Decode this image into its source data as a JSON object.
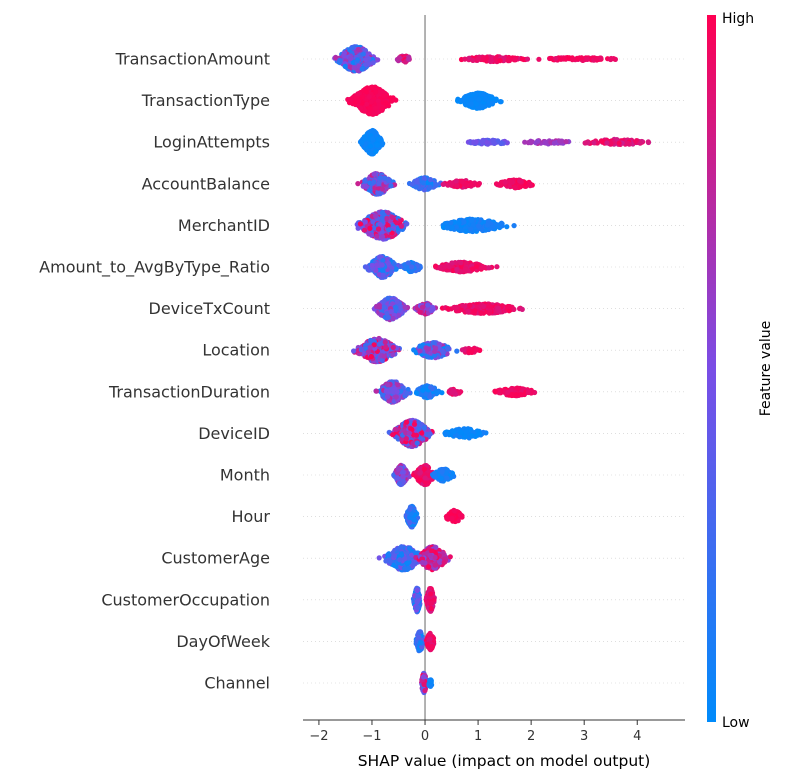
{
  "chart_data": {
    "type": "scatter",
    "subtype": "shap-beeswarm",
    "title": "",
    "xlabel": "SHAP value (impact on model output)",
    "xlim": [
      -2.3,
      4.9
    ],
    "xticks": [
      -2,
      -1,
      0,
      1,
      2,
      3,
      4
    ],
    "zero_line": true,
    "colorbar": {
      "label": "Feature value",
      "high_label": "High",
      "low_label": "Low",
      "low_color": "#008bfb",
      "high_color": "#ff0052"
    },
    "features": [
      {
        "name": "TransactionAmount",
        "clusters": [
          {
            "center": -1.3,
            "spread": 0.28,
            "width": 0.9,
            "count": 460,
            "colorMin": 0.05,
            "colorMax": 0.75
          },
          {
            "center": -0.4,
            "spread": 0.12,
            "width": 0.25,
            "count": 40,
            "colorMin": 0.7,
            "colorMax": 1.0
          },
          {
            "center": 1.3,
            "spread": 0.5,
            "width": 0.18,
            "count": 110,
            "colorMin": 0.85,
            "colorMax": 1.0
          },
          {
            "center": 2.9,
            "spread": 0.55,
            "width": 0.12,
            "count": 70,
            "colorMin": 0.9,
            "colorMax": 1.0
          }
        ]
      },
      {
        "name": "TransactionType",
        "clusters": [
          {
            "center": -1.0,
            "spread": 0.3,
            "width": 1.0,
            "count": 520,
            "colorMin": 0.95,
            "colorMax": 1.0
          },
          {
            "center": 1.0,
            "spread": 0.28,
            "width": 0.55,
            "count": 260,
            "colorMin": 0.0,
            "colorMax": 0.05
          }
        ]
      },
      {
        "name": "LoginAttempts",
        "clusters": [
          {
            "center": -1.0,
            "spread": 0.15,
            "width": 0.85,
            "count": 320,
            "colorMin": 0.0,
            "colorMax": 0.08
          },
          {
            "center": 1.2,
            "spread": 0.35,
            "width": 0.15,
            "count": 50,
            "colorMin": 0.3,
            "colorMax": 0.5
          },
          {
            "center": 2.3,
            "spread": 0.35,
            "width": 0.15,
            "count": 50,
            "colorMin": 0.55,
            "colorMax": 0.75
          },
          {
            "center": 3.6,
            "spread": 0.5,
            "width": 0.2,
            "count": 90,
            "colorMin": 0.8,
            "colorMax": 1.0
          }
        ]
      },
      {
        "name": "AccountBalance",
        "clusters": [
          {
            "center": -0.9,
            "spread": 0.22,
            "width": 0.75,
            "count": 300,
            "colorMin": 0.1,
            "colorMax": 0.85
          },
          {
            "center": 0.0,
            "spread": 0.2,
            "width": 0.45,
            "count": 150,
            "colorMin": 0.0,
            "colorMax": 0.35
          },
          {
            "center": 0.7,
            "spread": 0.3,
            "width": 0.25,
            "count": 80,
            "colorMin": 0.85,
            "colorMax": 1.0
          },
          {
            "center": 1.7,
            "spread": 0.3,
            "width": 0.28,
            "count": 110,
            "colorMin": 0.9,
            "colorMax": 1.0
          }
        ]
      },
      {
        "name": "MerchantID",
        "clusters": [
          {
            "center": -0.8,
            "spread": 0.35,
            "width": 1.0,
            "count": 500,
            "colorMin": 0.1,
            "colorMax": 1.0
          },
          {
            "center": 0.9,
            "spread": 0.5,
            "width": 0.45,
            "count": 260,
            "colorMin": 0.0,
            "colorMax": 0.15
          }
        ]
      },
      {
        "name": "Amount_to_AvgByType_Ratio",
        "clusters": [
          {
            "center": -0.8,
            "spread": 0.22,
            "width": 0.75,
            "count": 300,
            "colorMin": 0.05,
            "colorMax": 0.6
          },
          {
            "center": -0.25,
            "spread": 0.15,
            "width": 0.35,
            "count": 80,
            "colorMin": 0.0,
            "colorMax": 0.3
          },
          {
            "center": 0.7,
            "spread": 0.4,
            "width": 0.35,
            "count": 200,
            "colorMin": 0.85,
            "colorMax": 1.0
          }
        ]
      },
      {
        "name": "DeviceTxCount",
        "clusters": [
          {
            "center": -0.65,
            "spread": 0.22,
            "width": 0.8,
            "count": 300,
            "colorMin": 0.15,
            "colorMax": 0.7
          },
          {
            "center": 0.0,
            "spread": 0.15,
            "width": 0.4,
            "count": 90,
            "colorMin": 0.4,
            "colorMax": 0.9
          },
          {
            "center": 1.1,
            "spread": 0.55,
            "width": 0.35,
            "count": 260,
            "colorMin": 0.85,
            "colorMax": 1.0
          }
        ]
      },
      {
        "name": "Location",
        "clusters": [
          {
            "center": -0.9,
            "spread": 0.3,
            "width": 0.85,
            "count": 380,
            "colorMin": 0.2,
            "colorMax": 1.0
          },
          {
            "center": 0.15,
            "spread": 0.3,
            "width": 0.55,
            "count": 230,
            "colorMin": 0.0,
            "colorMax": 0.7
          },
          {
            "center": 0.85,
            "spread": 0.15,
            "width": 0.2,
            "count": 40,
            "colorMin": 0.85,
            "colorMax": 1.0
          }
        ]
      },
      {
        "name": "TransactionDuration",
        "clusters": [
          {
            "center": -0.6,
            "spread": 0.22,
            "width": 0.75,
            "count": 300,
            "colorMin": 0.1,
            "colorMax": 0.75
          },
          {
            "center": 0.05,
            "spread": 0.17,
            "width": 0.45,
            "count": 120,
            "colorMin": 0.0,
            "colorMax": 0.25
          },
          {
            "center": 0.55,
            "spread": 0.1,
            "width": 0.2,
            "count": 30,
            "colorMin": 0.85,
            "colorMax": 1.0
          },
          {
            "center": 1.7,
            "spread": 0.3,
            "width": 0.28,
            "count": 110,
            "colorMin": 0.9,
            "colorMax": 1.0
          }
        ]
      },
      {
        "name": "DeviceID",
        "clusters": [
          {
            "center": -0.25,
            "spread": 0.28,
            "width": 0.95,
            "count": 460,
            "colorMin": 0.2,
            "colorMax": 1.0
          },
          {
            "center": 0.75,
            "spread": 0.3,
            "width": 0.35,
            "count": 120,
            "colorMin": 0.0,
            "colorMax": 0.1
          }
        ]
      },
      {
        "name": "Month",
        "clusters": [
          {
            "center": -0.45,
            "spread": 0.1,
            "width": 0.7,
            "count": 200,
            "colorMin": 0.25,
            "colorMax": 0.8
          },
          {
            "center": 0.0,
            "spread": 0.15,
            "width": 0.7,
            "count": 180,
            "colorMin": 0.85,
            "colorMax": 1.0
          },
          {
            "center": 0.35,
            "spread": 0.15,
            "width": 0.45,
            "count": 100,
            "colorMin": 0.0,
            "colorMax": 0.15
          }
        ]
      },
      {
        "name": "Hour",
        "clusters": [
          {
            "center": -0.25,
            "spread": 0.08,
            "width": 0.75,
            "count": 220,
            "colorMin": 0.0,
            "colorMax": 0.35
          },
          {
            "center": 0.55,
            "spread": 0.12,
            "width": 0.45,
            "count": 110,
            "colorMin": 0.95,
            "colorMax": 1.0
          }
        ]
      },
      {
        "name": "CustomerAge",
        "clusters": [
          {
            "center": -0.4,
            "spread": 0.28,
            "width": 0.85,
            "count": 280,
            "colorMin": 0.0,
            "colorMax": 0.5
          },
          {
            "center": 0.15,
            "spread": 0.22,
            "width": 0.85,
            "count": 230,
            "colorMin": 0.5,
            "colorMax": 1.0
          }
        ]
      },
      {
        "name": "CustomerOccupation",
        "clusters": [
          {
            "center": -0.15,
            "spread": 0.05,
            "width": 0.85,
            "count": 180,
            "colorMin": 0.0,
            "colorMax": 0.55
          },
          {
            "center": 0.1,
            "spread": 0.06,
            "width": 0.85,
            "count": 160,
            "colorMin": 0.8,
            "colorMax": 1.0
          }
        ]
      },
      {
        "name": "DayOfWeek",
        "clusters": [
          {
            "center": -0.1,
            "spread": 0.05,
            "width": 0.75,
            "count": 160,
            "colorMin": 0.0,
            "colorMax": 0.45
          },
          {
            "center": 0.1,
            "spread": 0.06,
            "width": 0.6,
            "count": 120,
            "colorMin": 0.85,
            "colorMax": 1.0
          }
        ]
      },
      {
        "name": "Channel",
        "clusters": [
          {
            "center": -0.02,
            "spread": 0.04,
            "width": 0.7,
            "count": 130,
            "colorMin": 0.3,
            "colorMax": 1.0
          },
          {
            "center": 0.1,
            "spread": 0.03,
            "width": 0.25,
            "count": 20,
            "colorMin": 0.0,
            "colorMax": 0.1
          }
        ]
      }
    ]
  }
}
